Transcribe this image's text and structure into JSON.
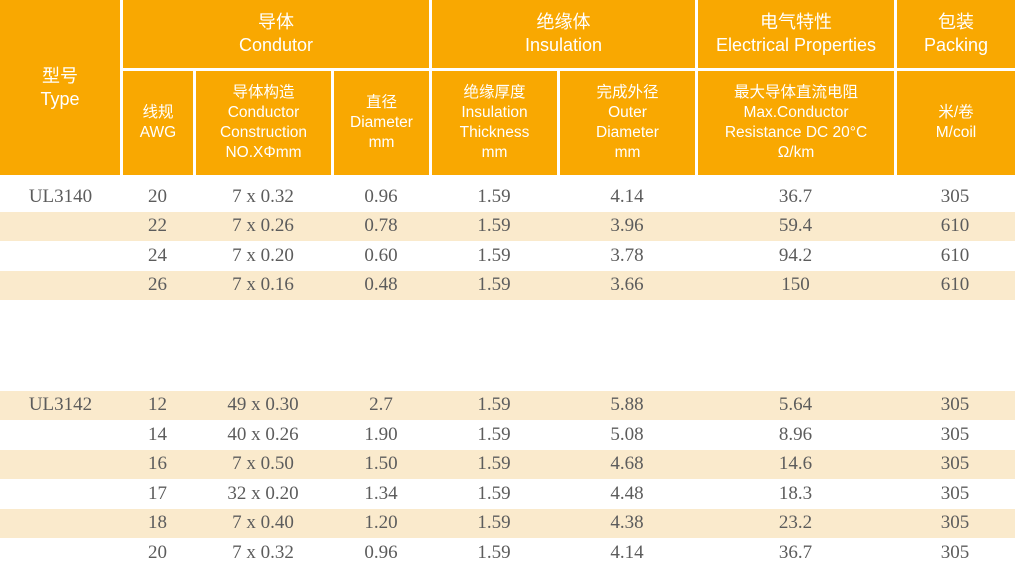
{
  "header": {
    "type_label": "型号\nType",
    "groups": [
      {
        "label": "导体\nCondutor"
      },
      {
        "label": "绝缘体\nInsulation"
      },
      {
        "label": "电气特性\nElectrical Properties"
      },
      {
        "label": "包装\nPacking"
      }
    ],
    "columns": [
      {
        "label": "线规\nAWG"
      },
      {
        "label": "导体构造\nConductor\nConstruction\nNO.XΦmm"
      },
      {
        "label": "直径\nDiameter\nmm"
      },
      {
        "label": "绝缘厚度\nInsulation\nThickness\nmm"
      },
      {
        "label": "完成外径\nOuter\nDiameter\nmm"
      },
      {
        "label": "最大导体直流电阻\nMax.Conductor\nResistance DC 20°C\nΩ/km"
      },
      {
        "label": "米/卷\nM/coil"
      }
    ]
  },
  "body": {
    "groups": [
      {
        "type": "UL3140",
        "first_row_shaded": false,
        "rows": [
          [
            "20",
            "7 x 0.32",
            "0.96",
            "1.59",
            "4.14",
            "36.7",
            "305"
          ],
          [
            "22",
            "7 x 0.26",
            "0.78",
            "1.59",
            "3.96",
            "59.4",
            "610"
          ],
          [
            "24",
            "7 x 0.20",
            "0.60",
            "1.59",
            "3.78",
            "94.2",
            "610"
          ],
          [
            "26",
            "7 x 0.16",
            "0.48",
            "1.59",
            "3.66",
            "150",
            "610"
          ]
        ]
      },
      {
        "type": "UL3142",
        "first_row_shaded": true,
        "rows": [
          [
            "12",
            "49 x 0.30",
            "2.7",
            "1.59",
            "5.88",
            "5.64",
            "305"
          ],
          [
            "14",
            "40 x 0.26",
            "1.90",
            "1.59",
            "5.08",
            "8.96",
            "305"
          ],
          [
            "16",
            "7 x 0.50",
            "1.50",
            "1.59",
            "4.68",
            "14.6",
            "305"
          ],
          [
            "17",
            "32 x 0.20",
            "1.34",
            "1.59",
            "4.48",
            "18.3",
            "305"
          ],
          [
            "18",
            "7 x 0.40",
            "1.20",
            "1.59",
            "4.38",
            "23.2",
            "305"
          ],
          [
            "20",
            "7 x 0.32",
            "0.96",
            "1.59",
            "4.14",
            "36.7",
            "305"
          ]
        ]
      }
    ]
  },
  "colors": {
    "header_bg": "#F9A801",
    "header_text": "#FFFFFF",
    "row_stripe": "#FAEACC",
    "data_text": "#5C5C5C"
  }
}
